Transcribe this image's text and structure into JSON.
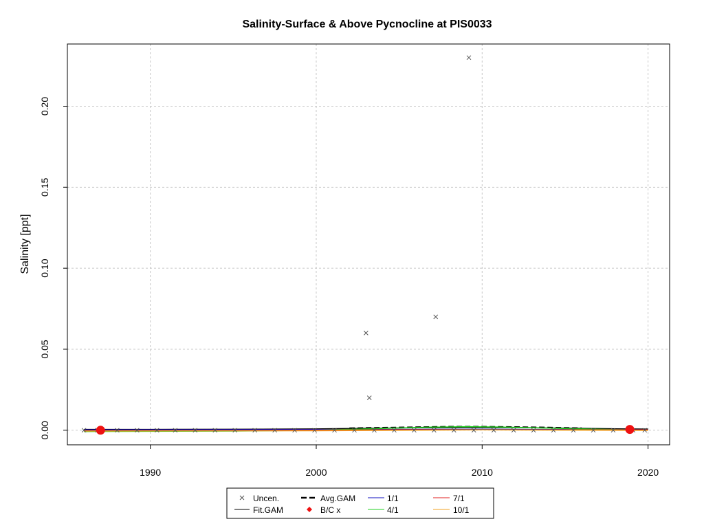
{
  "chart_data": {
    "type": "scatter",
    "title": "Salinity-Surface & Above Pycnocline at PIS0033",
    "xlabel": "",
    "ylabel": "Salinity [ppt]",
    "xlim": [
      1985,
      2021.3
    ],
    "ylim": [
      -0.009,
      0.2384
    ],
    "x_ticks": [
      1990,
      2000,
      2010,
      2020
    ],
    "y_ticks": [
      0.0,
      0.05,
      0.1,
      0.15,
      0.2
    ],
    "x_tick_labels": [
      "1990",
      "2000",
      "2010",
      "2020"
    ],
    "y_tick_labels": [
      "0.00",
      "0.05",
      "0.10",
      "0.15",
      "0.20"
    ],
    "grid": true,
    "legend_position": "bottom-center",
    "legend": [
      "Uncen.",
      "Avg.GAM",
      "1/1",
      "7/1",
      "Fit.GAM",
      "B/C x",
      "4/1",
      "10/1"
    ],
    "uncensored_points": {
      "x": [
        2003.0,
        2003.2,
        2007.2,
        2009.2,
        1986.0,
        1986.8,
        1988.0,
        1989.2,
        1990.4,
        1991.5,
        1992.7,
        1993.9,
        1995.1,
        1996.3,
        1997.5,
        1998.7,
        1999.9,
        2001.1,
        2002.3,
        2003.5,
        2004.7,
        2005.9,
        2007.1,
        2008.3,
        2009.5,
        2010.7,
        2011.9,
        2013.1,
        2014.3,
        2015.5,
        2016.7,
        2017.9,
        2019.1,
        2019.8
      ],
      "y": [
        0.06,
        0.02,
        0.07,
        0.23,
        0.0,
        0.0,
        0.0,
        0.0,
        0.0,
        0.0,
        0.0,
        0.0,
        0.0,
        0.0,
        0.0,
        0.0,
        0.0,
        0.0,
        0.0,
        0.0,
        0.0,
        0.0,
        0.0,
        0.0,
        0.0,
        0.0,
        0.0,
        0.0,
        0.0,
        0.0,
        0.0,
        0.0,
        0.0,
        0.0
      ]
    },
    "bc_points": {
      "x": [
        1987.0,
        2018.9
      ],
      "y": [
        0.0,
        0.0005
      ]
    },
    "series": [
      {
        "name": "Fit.GAM",
        "x": [
          1986,
          1990,
          1995,
          2000,
          2003,
          2006,
          2009,
          2012,
          2015,
          2018,
          2020
        ],
        "y": [
          0.0005,
          0.0005,
          0.0006,
          0.0008,
          0.0012,
          0.0015,
          0.0017,
          0.0016,
          0.0013,
          0.0009,
          0.0007
        ]
      },
      {
        "name": "Avg.GAM",
        "x": [
          2002,
          2004,
          2006,
          2008,
          2010,
          2012,
          2014,
          2016
        ],
        "y": [
          0.0012,
          0.0015,
          0.0018,
          0.0021,
          0.0021,
          0.0019,
          0.0016,
          0.0012
        ]
      },
      {
        "name": "1/1",
        "x": [
          1986,
          2000,
          2010,
          2020
        ],
        "y": [
          0.0002,
          0.0004,
          0.0006,
          0.0003
        ]
      },
      {
        "name": "4/1",
        "x": [
          1986,
          1995,
          2000,
          2003,
          2005,
          2007,
          2009,
          2011,
          2014,
          2017,
          2020
        ],
        "y": [
          -0.0008,
          -0.0005,
          0.0,
          0.0008,
          0.0014,
          0.0019,
          0.0022,
          0.002,
          0.0013,
          0.0006,
          0.0001
        ]
      },
      {
        "name": "7/1",
        "x": [
          1986,
          1995,
          2005,
          2020
        ],
        "y": [
          -0.0003,
          -0.0002,
          0.0003,
          0.0002
        ]
      },
      {
        "name": "10/1",
        "x": [
          1986,
          2000,
          2010,
          2020
        ],
        "y": [
          -0.0005,
          -0.0003,
          0.0002,
          -0.0001
        ]
      }
    ],
    "colors": {
      "uncen": "#555555",
      "fit": "#000000",
      "avg": "#000000",
      "s11": "#1010c0",
      "s41": "#20d020",
      "s71": "#e02020",
      "s101": "#f0a020",
      "bc": "#ee1111",
      "grid": "#c8c8c8"
    },
    "icons": {
      "uncen": "x-marker-icon",
      "bc": "red-diamond-icon"
    }
  }
}
